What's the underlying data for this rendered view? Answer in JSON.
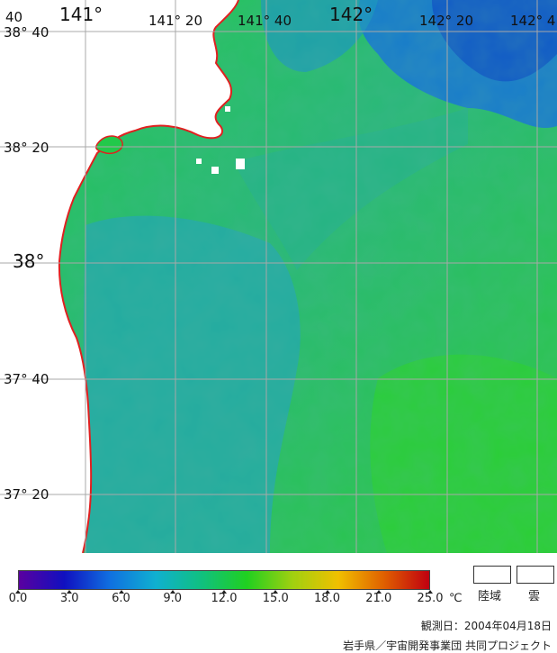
{
  "map": {
    "lat_labels": [
      {
        "text": "38° 40"
      },
      {
        "text": "38° 20"
      },
      {
        "text": "38°"
      },
      {
        "text": "37° 40"
      },
      {
        "text": "37° 20"
      }
    ],
    "lon_labels": [
      {
        "text": "141°"
      },
      {
        "text": "141° 20"
      },
      {
        "text": "141° 40"
      },
      {
        "text": "142°"
      },
      {
        "text": "142° 20"
      },
      {
        "text": "142° 4"
      }
    ],
    "corner_label": "40",
    "colors": {
      "land": "#ffffff",
      "coast": "#e02020",
      "grid": "#a8a8a8",
      "sea_mid": "#22c94a",
      "sea_cool": "#20a8a0",
      "sea_cold": "#1070d0"
    }
  },
  "colorbar": {
    "ticks": [
      "0.0",
      "3.0",
      "6.0",
      "9.0",
      "12.0",
      "15.0",
      "18.0",
      "21.0",
      "25.0"
    ],
    "unit": "℃",
    "stops": [
      "#5a00a0",
      "#1010c0",
      "#1070e0",
      "#10b0d0",
      "#10c080",
      "#20d020",
      "#a0d010",
      "#f0c000",
      "#e06000",
      "#c00010"
    ]
  },
  "legend": {
    "land_label": "陸域",
    "cloud_label": "雲"
  },
  "footer": {
    "obs_date": "観測日：2004年04月18日",
    "credit": "岩手県／宇宙開発事業団 共同プロジェクト"
  }
}
